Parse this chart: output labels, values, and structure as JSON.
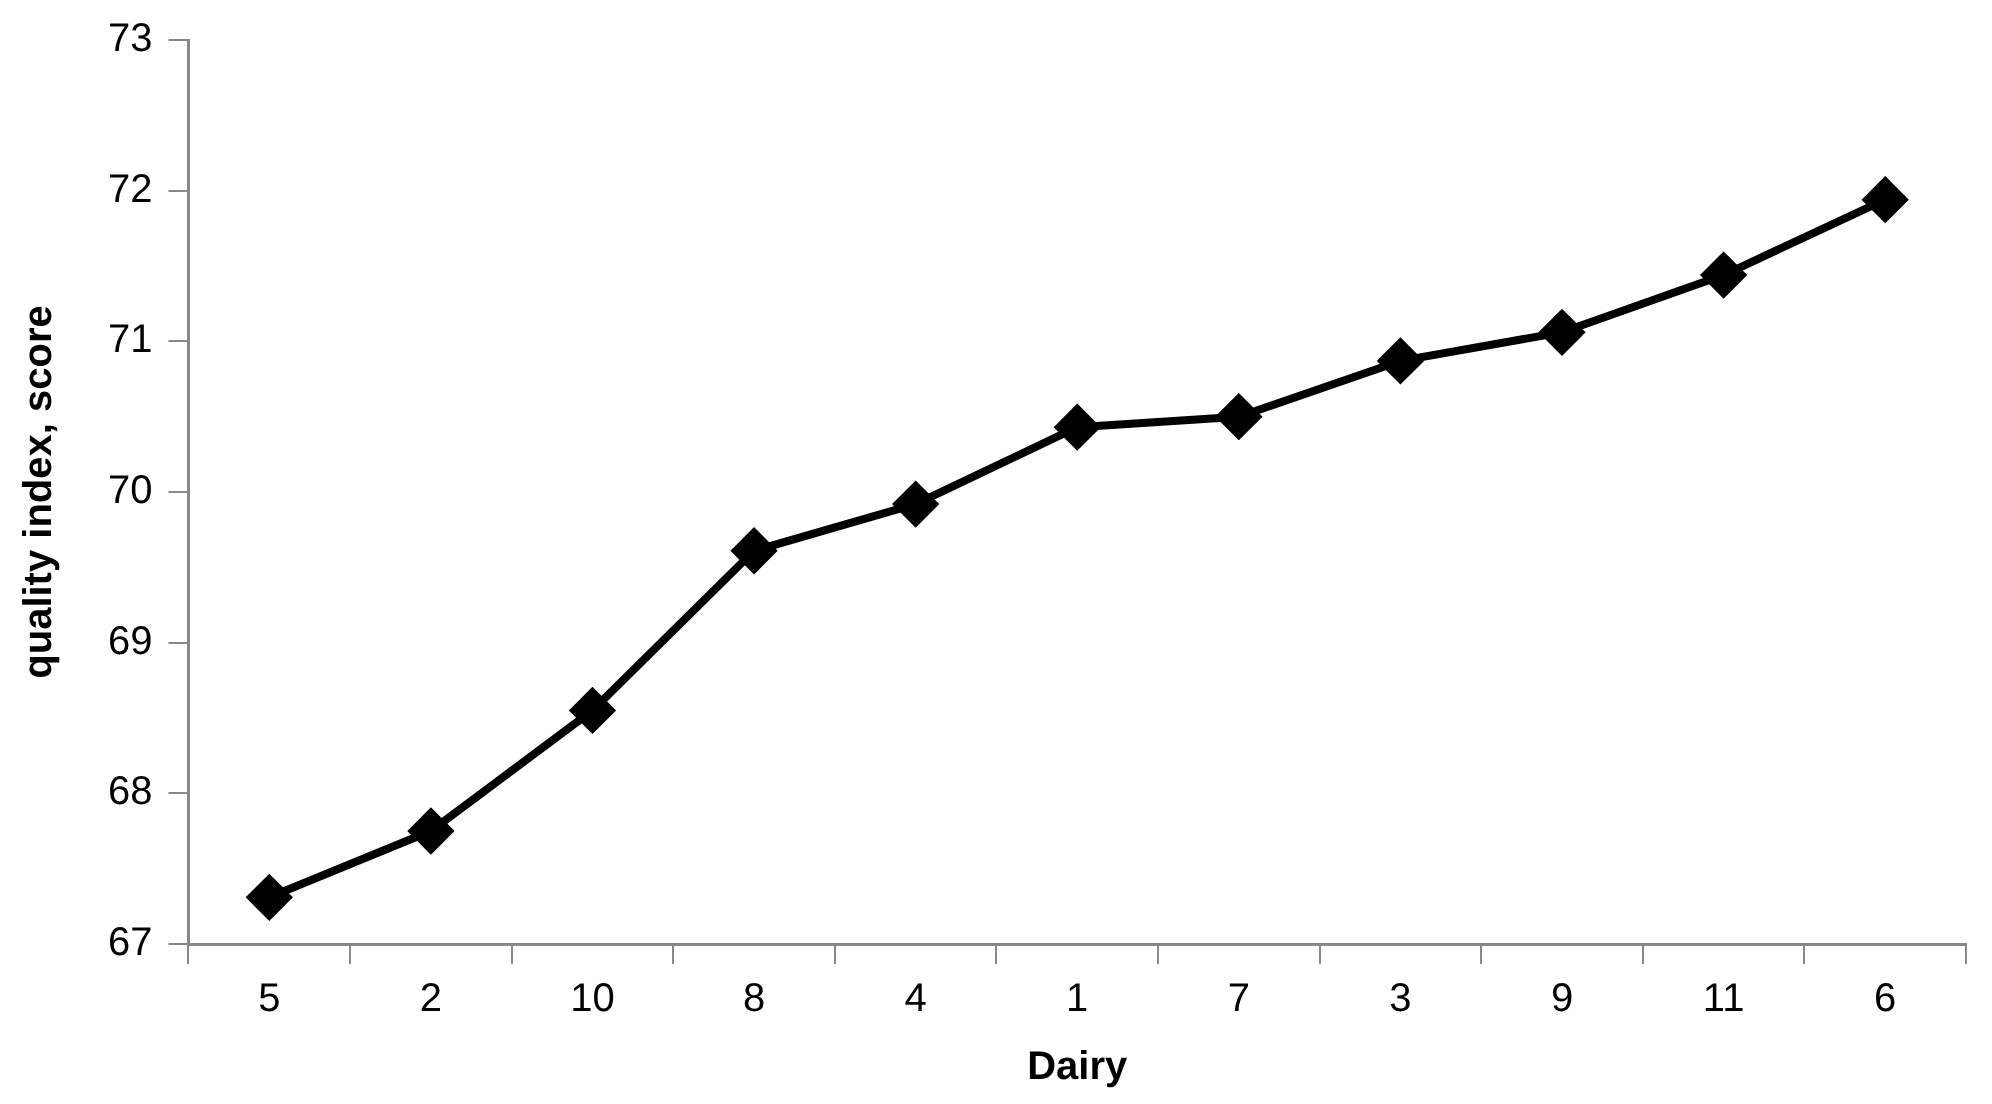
{
  "chart_data": {
    "type": "line",
    "xlabel": "Dairy",
    "ylabel": "quality index, score",
    "categories": [
      "5",
      "2",
      "10",
      "8",
      "4",
      "1",
      "7",
      "3",
      "9",
      "11",
      "6"
    ],
    "series": [
      {
        "color": "#000000",
        "values": [
          67.31,
          67.75,
          68.55,
          69.61,
          69.92,
          70.43,
          70.5,
          70.87,
          71.06,
          71.44,
          71.94
        ]
      }
    ],
    "ylim": [
      67,
      73
    ],
    "yticks": [
      67,
      68,
      69,
      70,
      71,
      72,
      73
    ],
    "grid": false,
    "legend": false,
    "marker": "diamond",
    "line_style": "solid"
  }
}
